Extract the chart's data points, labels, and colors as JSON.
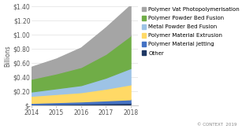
{
  "years": [
    2014,
    2015,
    2016,
    2017,
    2018
  ],
  "series": {
    "Other": [
      0.02,
      0.025,
      0.03,
      0.035,
      0.04
    ],
    "Polymer Material Jetting": [
      0.02,
      0.025,
      0.03,
      0.04,
      0.05
    ],
    "Polymer Material Extrusion": [
      0.1,
      0.115,
      0.13,
      0.165,
      0.21
    ],
    "Metal Powder Bed Fusion": [
      0.06,
      0.08,
      0.1,
      0.155,
      0.23
    ],
    "Polymer Powder Bed Fusion": [
      0.18,
      0.21,
      0.255,
      0.335,
      0.46
    ],
    "Polymer Vat Photopolymerisation": [
      0.17,
      0.21,
      0.275,
      0.375,
      0.43
    ]
  },
  "colors": {
    "Other": "#1f3864",
    "Polymer Material Jetting": "#4472c4",
    "Polymer Material Extrusion": "#ffd966",
    "Metal Powder Bed Fusion": "#9dc3e6",
    "Polymer Powder Bed Fusion": "#70ad47",
    "Polymer Vat Photopolymerisation": "#a5a5a5"
  },
  "ylabel": "Billions",
  "ylim": [
    0,
    1.4
  ],
  "yticks": [
    0,
    0.2,
    0.4,
    0.6,
    0.8,
    1.0,
    1.2,
    1.4
  ],
  "ytick_labels": [
    "$-",
    "$0.20",
    "$0.40",
    "$0.60",
    "$0.80",
    "$1.00",
    "$1.20",
    "$1.40"
  ],
  "xlim": [
    2014,
    2018.3
  ],
  "background_color": "#ffffff",
  "copyright": "© CONTEXT  2019",
  "axis_fontsize": 5.5,
  "legend_fontsize": 5.0,
  "series_order": [
    "Other",
    "Polymer Material Jetting",
    "Polymer Material Extrusion",
    "Metal Powder Bed Fusion",
    "Polymer Powder Bed Fusion",
    "Polymer Vat Photopolymerisation"
  ]
}
